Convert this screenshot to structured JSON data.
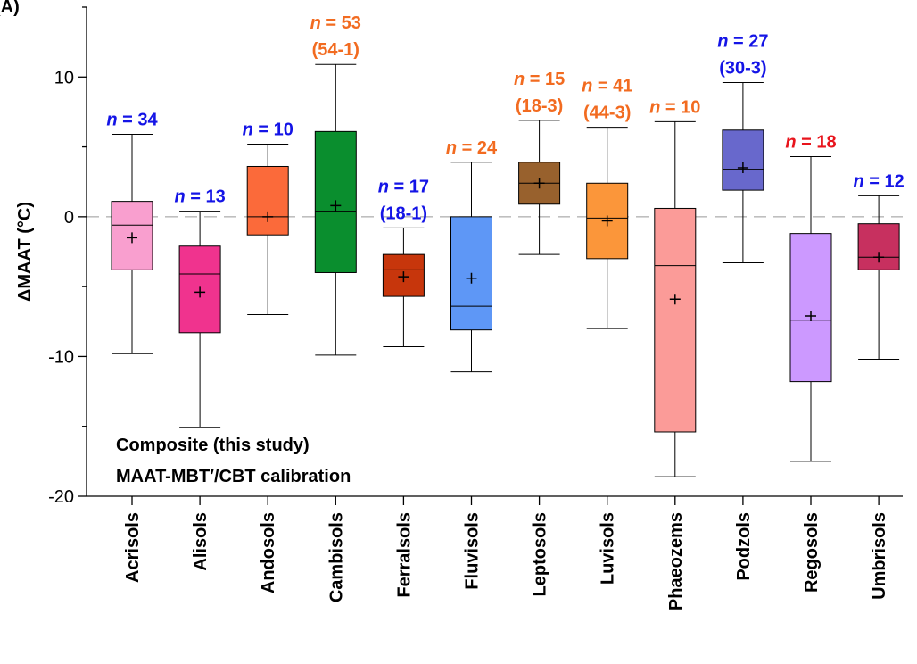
{
  "chart_data": {
    "type": "box",
    "panel_label": "(A)",
    "y_label": "ΔMAAT (°C)",
    "annotation": [
      "Composite (this study)",
      "MAAT-MBT′/CBT calibration"
    ],
    "ylim": [
      -20,
      15
    ],
    "yticks": [
      -20,
      -10,
      0,
      10
    ],
    "minor_yticks": [
      -15,
      -5,
      5,
      15
    ],
    "reference_line": 0,
    "categories": [
      "Acrisols",
      "Alisols",
      "Andosols",
      "Cambisols",
      "Ferralsols",
      "Fluvisols",
      "Leptosols",
      "Luvisols",
      "Phaeozems",
      "Podzols",
      "Regosols",
      "Umbrisols"
    ],
    "boxes": [
      {
        "whisker_low": -9.8,
        "q1": -3.8,
        "median": -0.6,
        "q3": 1.1,
        "whisker_high": 5.9,
        "mean": -1.5,
        "color": "#f99fcf",
        "label": [
          "n = 34"
        ],
        "label_color": "#1414e6"
      },
      {
        "whisker_low": -15.1,
        "q1": -8.3,
        "median": -4.1,
        "q3": -2.1,
        "whisker_high": 0.4,
        "mean": -5.4,
        "color": "#f0338e",
        "label": [
          "n = 13"
        ],
        "label_color": "#1414e6"
      },
      {
        "whisker_low": -7.0,
        "q1": -1.3,
        "median": 0.0,
        "q3": 3.6,
        "whisker_high": 5.2,
        "mean": 0.0,
        "color": "#fb6a3a",
        "label": [
          "n = 10"
        ],
        "label_color": "#1414e6"
      },
      {
        "whisker_low": -9.9,
        "q1": -4.0,
        "median": 0.4,
        "q3": 6.1,
        "whisker_high": 10.9,
        "mean": 0.8,
        "color": "#0a8e2e",
        "label": [
          "n = 53",
          "(54-1)"
        ],
        "label_color": "#f26b20"
      },
      {
        "whisker_low": -9.3,
        "q1": -5.7,
        "median": -3.8,
        "q3": -2.7,
        "whisker_high": -0.8,
        "mean": -4.3,
        "color": "#c7360c",
        "label": [
          "n = 17",
          "(18-1)"
        ],
        "label_color": "#1414e6"
      },
      {
        "whisker_low": -11.1,
        "q1": -8.1,
        "median": -6.4,
        "q3": 0.0,
        "whisker_high": 3.9,
        "mean": -4.4,
        "color": "#5e97f6",
        "label": [
          "n = 24"
        ],
        "label_color": "#f26b20"
      },
      {
        "whisker_low": -2.7,
        "q1": 0.9,
        "median": 2.4,
        "q3": 3.9,
        "whisker_high": 6.9,
        "mean": 2.4,
        "color": "#98612d",
        "label": [
          "n = 15",
          "(18-3)"
        ],
        "label_color": "#f26b20"
      },
      {
        "whisker_low": -8.0,
        "q1": -3.0,
        "median": -0.1,
        "q3": 2.4,
        "whisker_high": 6.4,
        "mean": -0.3,
        "color": "#fb963a",
        "label": [
          "n = 41",
          "(44-3)"
        ],
        "label_color": "#f26b20"
      },
      {
        "whisker_low": -18.6,
        "q1": -15.4,
        "median": -3.5,
        "q3": 0.6,
        "whisker_high": 6.8,
        "mean": -5.9,
        "color": "#fb9b98",
        "label": [
          "n = 10"
        ],
        "label_color": "#f26b20"
      },
      {
        "whisker_low": -3.3,
        "q1": 1.9,
        "median": 3.4,
        "q3": 6.2,
        "whisker_high": 9.6,
        "mean": 3.5,
        "color": "#6868cc",
        "label": [
          "n = 27",
          "(30-3)"
        ],
        "label_color": "#1414e6"
      },
      {
        "whisker_low": -17.5,
        "q1": -11.8,
        "median": -7.4,
        "q3": -1.2,
        "whisker_high": 4.3,
        "mean": -7.1,
        "color": "#cc99ff",
        "label": [
          "n = 18"
        ],
        "label_color": "#e8141c"
      },
      {
        "whisker_low": -10.2,
        "q1": -3.8,
        "median": -2.9,
        "q3": -0.5,
        "whisker_high": 1.5,
        "mean": -2.9,
        "color": "#c7305f",
        "label": [
          "n = 12"
        ],
        "label_color": "#1414e6"
      }
    ]
  }
}
